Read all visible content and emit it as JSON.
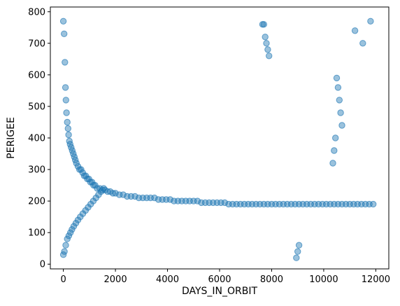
{
  "chart_data": {
    "type": "scatter",
    "title": "",
    "xlabel": "DAYS_IN_ORBIT",
    "ylabel": "PERIGEE",
    "xlim": [
      -500,
      12500
    ],
    "ylim": [
      -15,
      815
    ],
    "xticks": [
      0,
      2000,
      4000,
      6000,
      8000,
      10000,
      12000
    ],
    "yticks": [
      0,
      100,
      200,
      300,
      400,
      500,
      600,
      700,
      800
    ],
    "grid": false,
    "legend": "none",
    "color": "#1f77b4",
    "alpha": 0.45,
    "x": [
      0,
      30,
      60,
      80,
      100,
      120,
      150,
      180,
      200,
      230,
      260,
      300,
      340,
      380,
      420,
      460,
      500,
      560,
      620,
      680,
      740,
      800,
      860,
      920,
      980,
      1040,
      1100,
      1160,
      1220,
      1300,
      1400,
      1500,
      1600,
      1700,
      1800,
      1900,
      2000,
      2150,
      2300,
      2450,
      2600,
      2750,
      2900,
      3050,
      3200,
      3350,
      3500,
      3650,
      3800,
      3950,
      4100,
      4250,
      4400,
      4550,
      4700,
      4850,
      5000,
      5150,
      5300,
      5450,
      5600,
      5750,
      5900,
      6050,
      6200,
      6350,
      6500,
      6650,
      6800,
      6950,
      7100,
      7250,
      7400,
      7550,
      7700,
      7850,
      8000,
      8150,
      8300,
      8450,
      8600,
      8750,
      8900,
      9050,
      9200,
      9350,
      9500,
      9650,
      9800,
      9950,
      10100,
      10250,
      10400,
      10550,
      10700,
      10850,
      11000,
      11150,
      11300,
      11450,
      11600,
      11750,
      11900,
      0,
      40,
      90,
      150,
      210,
      270,
      330,
      400,
      480,
      560,
      650,
      750,
      850,
      950,
      1050,
      1150,
      1250,
      1350,
      1450,
      1550,
      10500,
      10550,
      10600,
      10650,
      10700,
      10450,
      10400,
      10350,
      7650,
      7700,
      7750,
      7800,
      7850,
      7900,
      8950,
      9000,
      9050,
      11200,
      11500,
      11800
    ],
    "y": [
      770,
      730,
      640,
      560,
      520,
      480,
      450,
      430,
      410,
      390,
      380,
      370,
      360,
      350,
      340,
      330,
      320,
      310,
      300,
      300,
      290,
      280,
      280,
      270,
      270,
      260,
      260,
      250,
      250,
      240,
      240,
      235,
      235,
      230,
      230,
      225,
      225,
      220,
      220,
      215,
      215,
      215,
      210,
      210,
      210,
      210,
      210,
      205,
      205,
      205,
      205,
      200,
      200,
      200,
      200,
      200,
      200,
      200,
      195,
      195,
      195,
      195,
      195,
      195,
      195,
      190,
      190,
      190,
      190,
      190,
      190,
      190,
      190,
      190,
      190,
      190,
      190,
      190,
      190,
      190,
      190,
      190,
      190,
      190,
      190,
      190,
      190,
      190,
      190,
      190,
      190,
      190,
      190,
      190,
      190,
      190,
      190,
      190,
      190,
      190,
      190,
      190,
      190,
      30,
      40,
      60,
      80,
      90,
      100,
      110,
      120,
      130,
      140,
      150,
      160,
      170,
      180,
      190,
      200,
      210,
      220,
      230,
      240,
      590,
      560,
      520,
      480,
      440,
      400,
      360,
      320,
      760,
      760,
      720,
      700,
      680,
      660,
      20,
      40,
      60,
      740,
      700,
      770
    ]
  }
}
